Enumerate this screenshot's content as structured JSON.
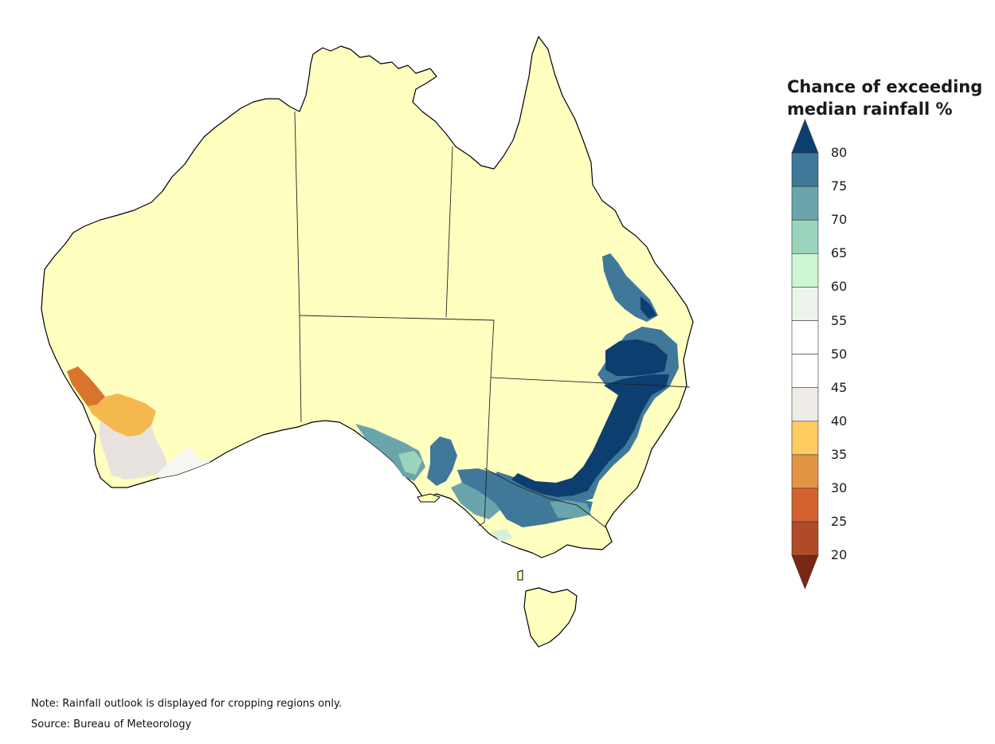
{
  "legend": {
    "title_line1": "Chance of exceeding",
    "title_line2": "median rainfall %",
    "ticks": [
      "80",
      "75",
      "70",
      "65",
      "60",
      "55",
      "50",
      "45",
      "40",
      "35",
      "30",
      "25",
      "20"
    ],
    "bins": [
      {
        "range": ">80",
        "color": "#0d3e70"
      },
      {
        "range": "75-80",
        "color": "#3f7899"
      },
      {
        "range": "70-75",
        "color": "#6aa5ab"
      },
      {
        "range": "65-70",
        "color": "#9bd3bd"
      },
      {
        "range": "60-65",
        "color": "#ccf5d2"
      },
      {
        "range": "55-60",
        "color": "#ecf4ec"
      },
      {
        "range": "50-55",
        "color": "#ffffff"
      },
      {
        "range": "45-50",
        "color": "#ffffff"
      },
      {
        "range": "40-45",
        "color": "#efebe6"
      },
      {
        "range": "35-40",
        "color": "#fdcb5f"
      },
      {
        "range": "30-35",
        "color": "#e39443"
      },
      {
        "range": "25-30",
        "color": "#d4622f"
      },
      {
        "range": "20-25",
        "color": "#b14a28"
      },
      {
        "range": "<20",
        "color": "#7b2716"
      }
    ]
  },
  "map": {
    "land_color": "#ffffc0",
    "outline_color": "#000000"
  },
  "notes": {
    "note": "Note: Rainfall outlook is displayed for cropping regions only.",
    "source": "Source: Bureau of Meteorology"
  }
}
